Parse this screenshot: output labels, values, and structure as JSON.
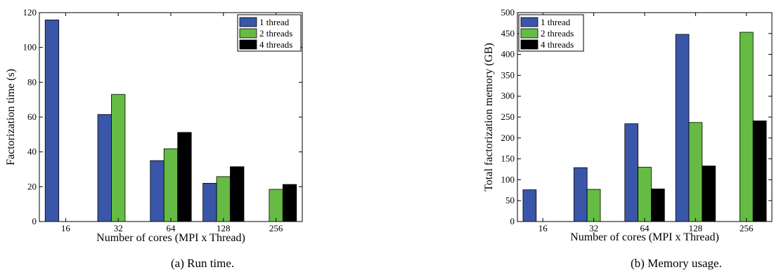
{
  "chart_data": [
    {
      "type": "bar",
      "categories": [
        "16",
        "32",
        "64",
        "128",
        "256"
      ],
      "series": [
        {
          "name": "1 thread",
          "values": [
            115.8,
            61.5,
            35.0,
            22.0,
            null
          ]
        },
        {
          "name": "2 threads",
          "values": [
            null,
            73.0,
            41.8,
            25.8,
            18.5
          ]
        },
        {
          "name": "4 threads",
          "values": [
            null,
            null,
            51.2,
            31.5,
            21.3
          ]
        }
      ],
      "xlabel": "Number of cores (MPI x Thread)",
      "ylabel": "Factorization time (s)",
      "ylim": [
        0,
        120
      ],
      "yticks": [
        0,
        20,
        40,
        60,
        80,
        100,
        120
      ],
      "legend": "top-right",
      "caption": "(a)  Run time."
    },
    {
      "type": "bar",
      "categories": [
        "16",
        "32",
        "64",
        "128",
        "256"
      ],
      "series": [
        {
          "name": "1 thread",
          "values": [
            76,
            129,
            234,
            448,
            null
          ]
        },
        {
          "name": "2 threads",
          "values": [
            null,
            77,
            130,
            237,
            453
          ]
        },
        {
          "name": "4 threads",
          "values": [
            null,
            null,
            78,
            133,
            241
          ]
        }
      ],
      "xlabel": "Number of cores (MPI x Thread)",
      "ylabel": "Total factorization memory (GB)",
      "ylim": [
        0,
        500
      ],
      "yticks": [
        0,
        50,
        100,
        150,
        200,
        250,
        300,
        350,
        400,
        450,
        500
      ],
      "legend": "top-left",
      "caption": "(b)  Memory usage."
    }
  ],
  "colors": {
    "series": [
      "#3a56a8",
      "#66bb44",
      "#000000"
    ]
  }
}
